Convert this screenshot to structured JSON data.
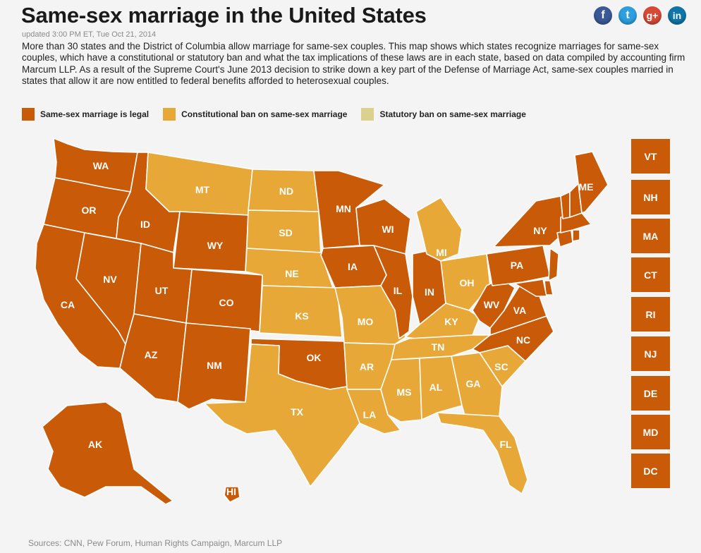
{
  "header": {
    "title": "Same-sex marriage in the United States",
    "updated": "updated 3:00 PM ET, Tue Oct 21, 2014",
    "description": "More than 30 states and the District of Columbia allow marriage for same-sex couples. This map shows which states recognize marriages for same-sex couples, which have a constitutional or statutory ban and what the tax implications of these laws are in each state, based on data compiled by accounting firm Marcum LLP. As a result of the Supreme Court's June 2013 decision to strike down a key part of the Defense of Marriage Act, same-sex couples married in states that allow it are now entitled to federal benefits afforded to heterosexual couples."
  },
  "social": [
    {
      "icon": "facebook-icon",
      "glyph": "f"
    },
    {
      "icon": "twitter-icon",
      "glyph": "t"
    },
    {
      "icon": "google-plus-icon",
      "glyph": "g+"
    },
    {
      "icon": "linkedin-icon",
      "glyph": "in"
    }
  ],
  "colors": {
    "legal": "#c95a08",
    "constitutional": "#e8a838",
    "statutory": "#dcd08e"
  },
  "legend": [
    {
      "key": "legal",
      "label": "Same-sex marriage is legal"
    },
    {
      "key": "constitutional",
      "label": "Constitutional ban on same-sex marriage"
    },
    {
      "key": "statutory",
      "label": "Statutory ban on same-sex marriage"
    }
  ],
  "states": {
    "WA": "legal",
    "OR": "legal",
    "CA": "legal",
    "NV": "legal",
    "ID": "legal",
    "MT": "constitutional",
    "WY": "legal",
    "UT": "legal",
    "AZ": "legal",
    "CO": "legal",
    "NM": "legal",
    "ND": "constitutional",
    "SD": "constitutional",
    "NE": "constitutional",
    "KS": "constitutional",
    "OK": "legal",
    "TX": "constitutional",
    "MN": "legal",
    "IA": "legal",
    "MO": "constitutional",
    "AR": "constitutional",
    "LA": "constitutional",
    "WI": "legal",
    "IL": "legal",
    "IN": "legal",
    "MI": "constitutional",
    "OH": "constitutional",
    "KY": "constitutional",
    "TN": "constitutional",
    "MS": "constitutional",
    "AL": "constitutional",
    "GA": "constitutional",
    "FL": "constitutional",
    "SC": "constitutional",
    "NC": "legal",
    "VA": "legal",
    "WV": "legal",
    "PA": "legal",
    "NY": "legal",
    "ME": "legal",
    "AK": "legal",
    "HI": "legal",
    "VT": "legal",
    "NH": "legal",
    "MA": "legal",
    "CT": "legal",
    "RI": "legal",
    "NJ": "legal",
    "DE": "legal",
    "MD": "legal",
    "DC": "legal"
  },
  "side_boxes": [
    "VT",
    "NH",
    "MA",
    "CT",
    "RI",
    "NJ",
    "DE",
    "MD",
    "DC"
  ],
  "sources": "Sources: CNN, Pew Forum, Human Rights Campaign, Marcum LLP"
}
